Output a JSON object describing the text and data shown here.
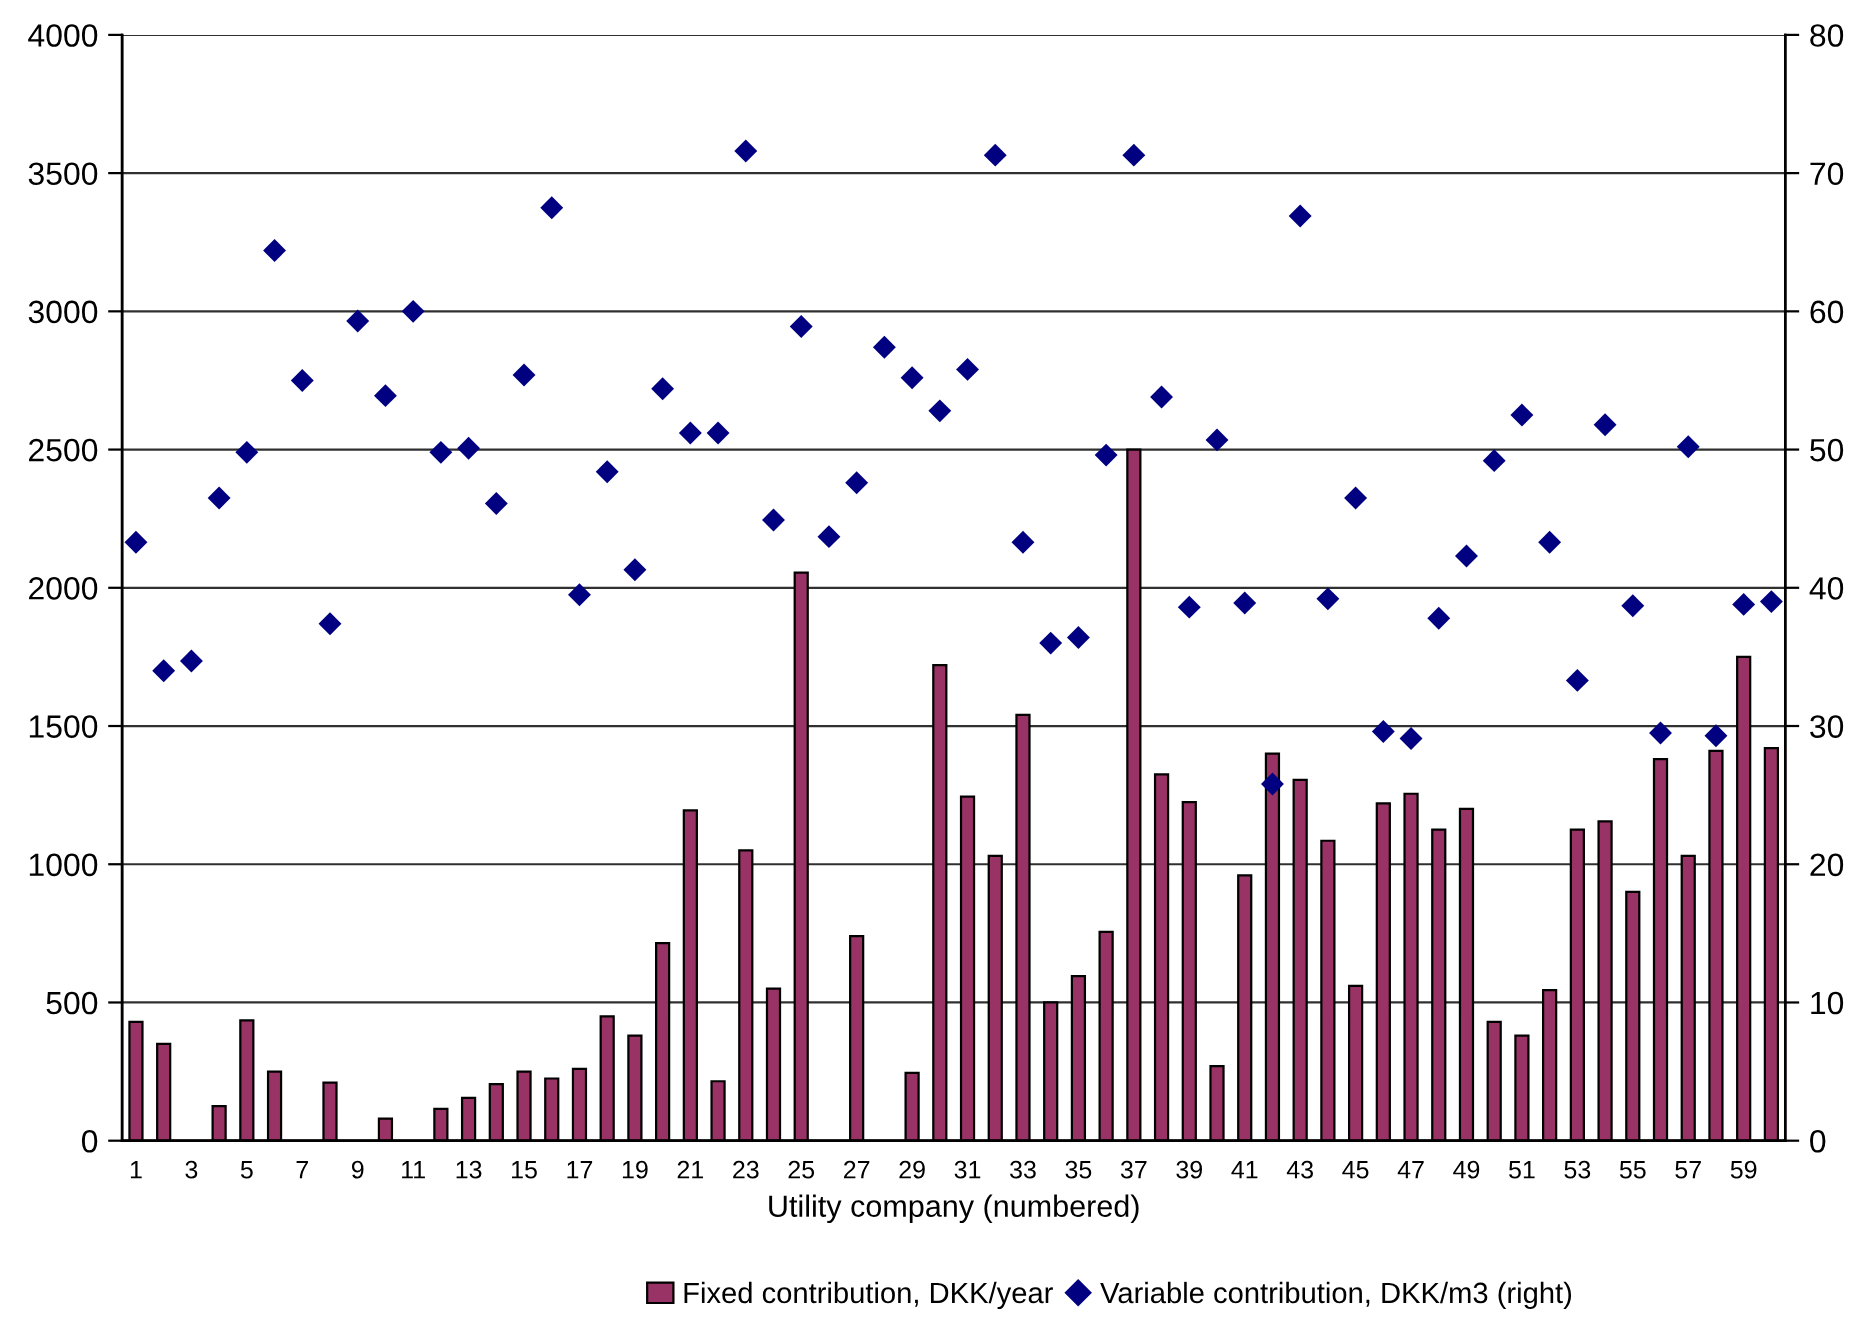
{
  "chart_data": {
    "type": "bar",
    "xlabel": "Utility company (numbered)",
    "categories": [
      "1",
      null,
      "3",
      null,
      "5",
      null,
      "7",
      null,
      "9",
      null,
      "11",
      null,
      "13",
      null,
      "15",
      null,
      "17",
      null,
      "19",
      null,
      "21",
      null,
      "23",
      null,
      "25",
      null,
      "27",
      null,
      "29",
      null,
      "31",
      null,
      "33",
      null,
      "35",
      null,
      "37",
      null,
      "39",
      null,
      "41",
      null,
      "43",
      null,
      "45",
      null,
      "47",
      null,
      "49",
      null,
      "51",
      null,
      "53",
      null,
      "55",
      null,
      "57",
      null,
      "59",
      null
    ],
    "series": [
      {
        "name": "Fixed contribution, DKK/year",
        "color": "#993366",
        "values": [
          430,
          350,
          null,
          125,
          435,
          250,
          null,
          210,
          null,
          80,
          null,
          115,
          155,
          205,
          250,
          225,
          260,
          450,
          380,
          715,
          1195,
          215,
          1050,
          550,
          2055,
          null,
          740,
          null,
          245,
          1720,
          1245,
          1030,
          1540,
          500,
          595,
          755,
          2500,
          1325,
          1225,
          270,
          960,
          1400,
          1305,
          1085,
          560,
          1220,
          1255,
          1125,
          1200,
          430,
          380,
          545,
          1125,
          1155,
          900,
          1380,
          1030,
          1410,
          1750,
          1420
        ]
      },
      {
        "name": "Variable contribution, DKK/m3 (right)",
        "type": "scatter",
        "axis": "y2",
        "marker": "diamond",
        "color": "#000080",
        "values": [
          43.3,
          34.0,
          34.7,
          46.5,
          49.8,
          64.4,
          55.0,
          37.4,
          59.3,
          53.9,
          60.0,
          49.8,
          50.1,
          46.1,
          55.4,
          67.5,
          39.5,
          48.4,
          41.3,
          54.4,
          51.2,
          51.2,
          71.6,
          44.9,
          58.9,
          43.7,
          47.6,
          57.4,
          55.2,
          52.8,
          55.8,
          71.3,
          43.3,
          36.0,
          36.4,
          49.6,
          71.3,
          53.8,
          38.6,
          50.7,
          38.9,
          25.8,
          66.9,
          39.2,
          46.5,
          29.6,
          29.1,
          37.8,
          42.3,
          49.2,
          52.5,
          43.3,
          33.3,
          51.8,
          38.7,
          29.5,
          50.2,
          29.3,
          38.8,
          39.0
        ]
      }
    ],
    "ylim": [
      0,
      4000
    ],
    "yticks": [
      0,
      500,
      1000,
      1500,
      2000,
      2500,
      3000,
      3500,
      4000
    ],
    "y2lim": [
      0,
      80
    ],
    "y2ticks": [
      0,
      10,
      20,
      30,
      40,
      50,
      60,
      70,
      80
    ],
    "grid": "y",
    "legend": "bottom"
  }
}
